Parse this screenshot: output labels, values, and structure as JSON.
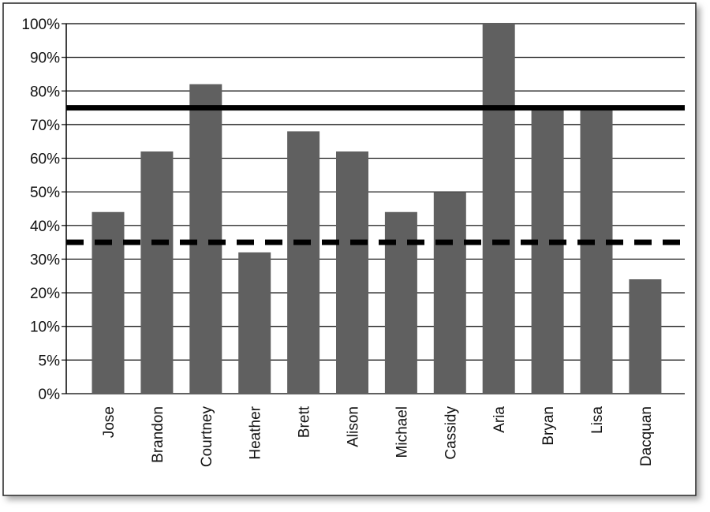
{
  "chart_data": {
    "type": "bar",
    "categories": [
      "Jose",
      "Brandon",
      "Courtney",
      "Heather",
      "Brett",
      "Alison",
      "Michael",
      "Cassidy",
      "Aria",
      "Bryan",
      "Lisa",
      "Dacquan"
    ],
    "values": [
      44,
      62,
      82,
      32,
      68,
      62,
      44,
      50,
      100,
      75,
      75,
      24
    ],
    "color": "#606060",
    "ylim": [
      0,
      100
    ],
    "yticks": [
      {
        "value": 0,
        "label": "0%"
      },
      {
        "value": 5,
        "label": "5%"
      },
      {
        "value": 10,
        "label": "10%"
      },
      {
        "value": 20,
        "label": "20%"
      },
      {
        "value": 30,
        "label": "30%"
      },
      {
        "value": 40,
        "label": "40%"
      },
      {
        "value": 50,
        "label": "50%"
      },
      {
        "value": 60,
        "label": "60%"
      },
      {
        "value": 70,
        "label": "70%"
      },
      {
        "value": 80,
        "label": "80%"
      },
      {
        "value": 90,
        "label": "90%"
      },
      {
        "value": 100,
        "label": "100%"
      }
    ],
    "grid": true,
    "reference_lines": [
      {
        "value": 75,
        "style": "solid",
        "color": "#000000"
      },
      {
        "value": 35,
        "style": "dashed",
        "color": "#000000"
      }
    ]
  }
}
